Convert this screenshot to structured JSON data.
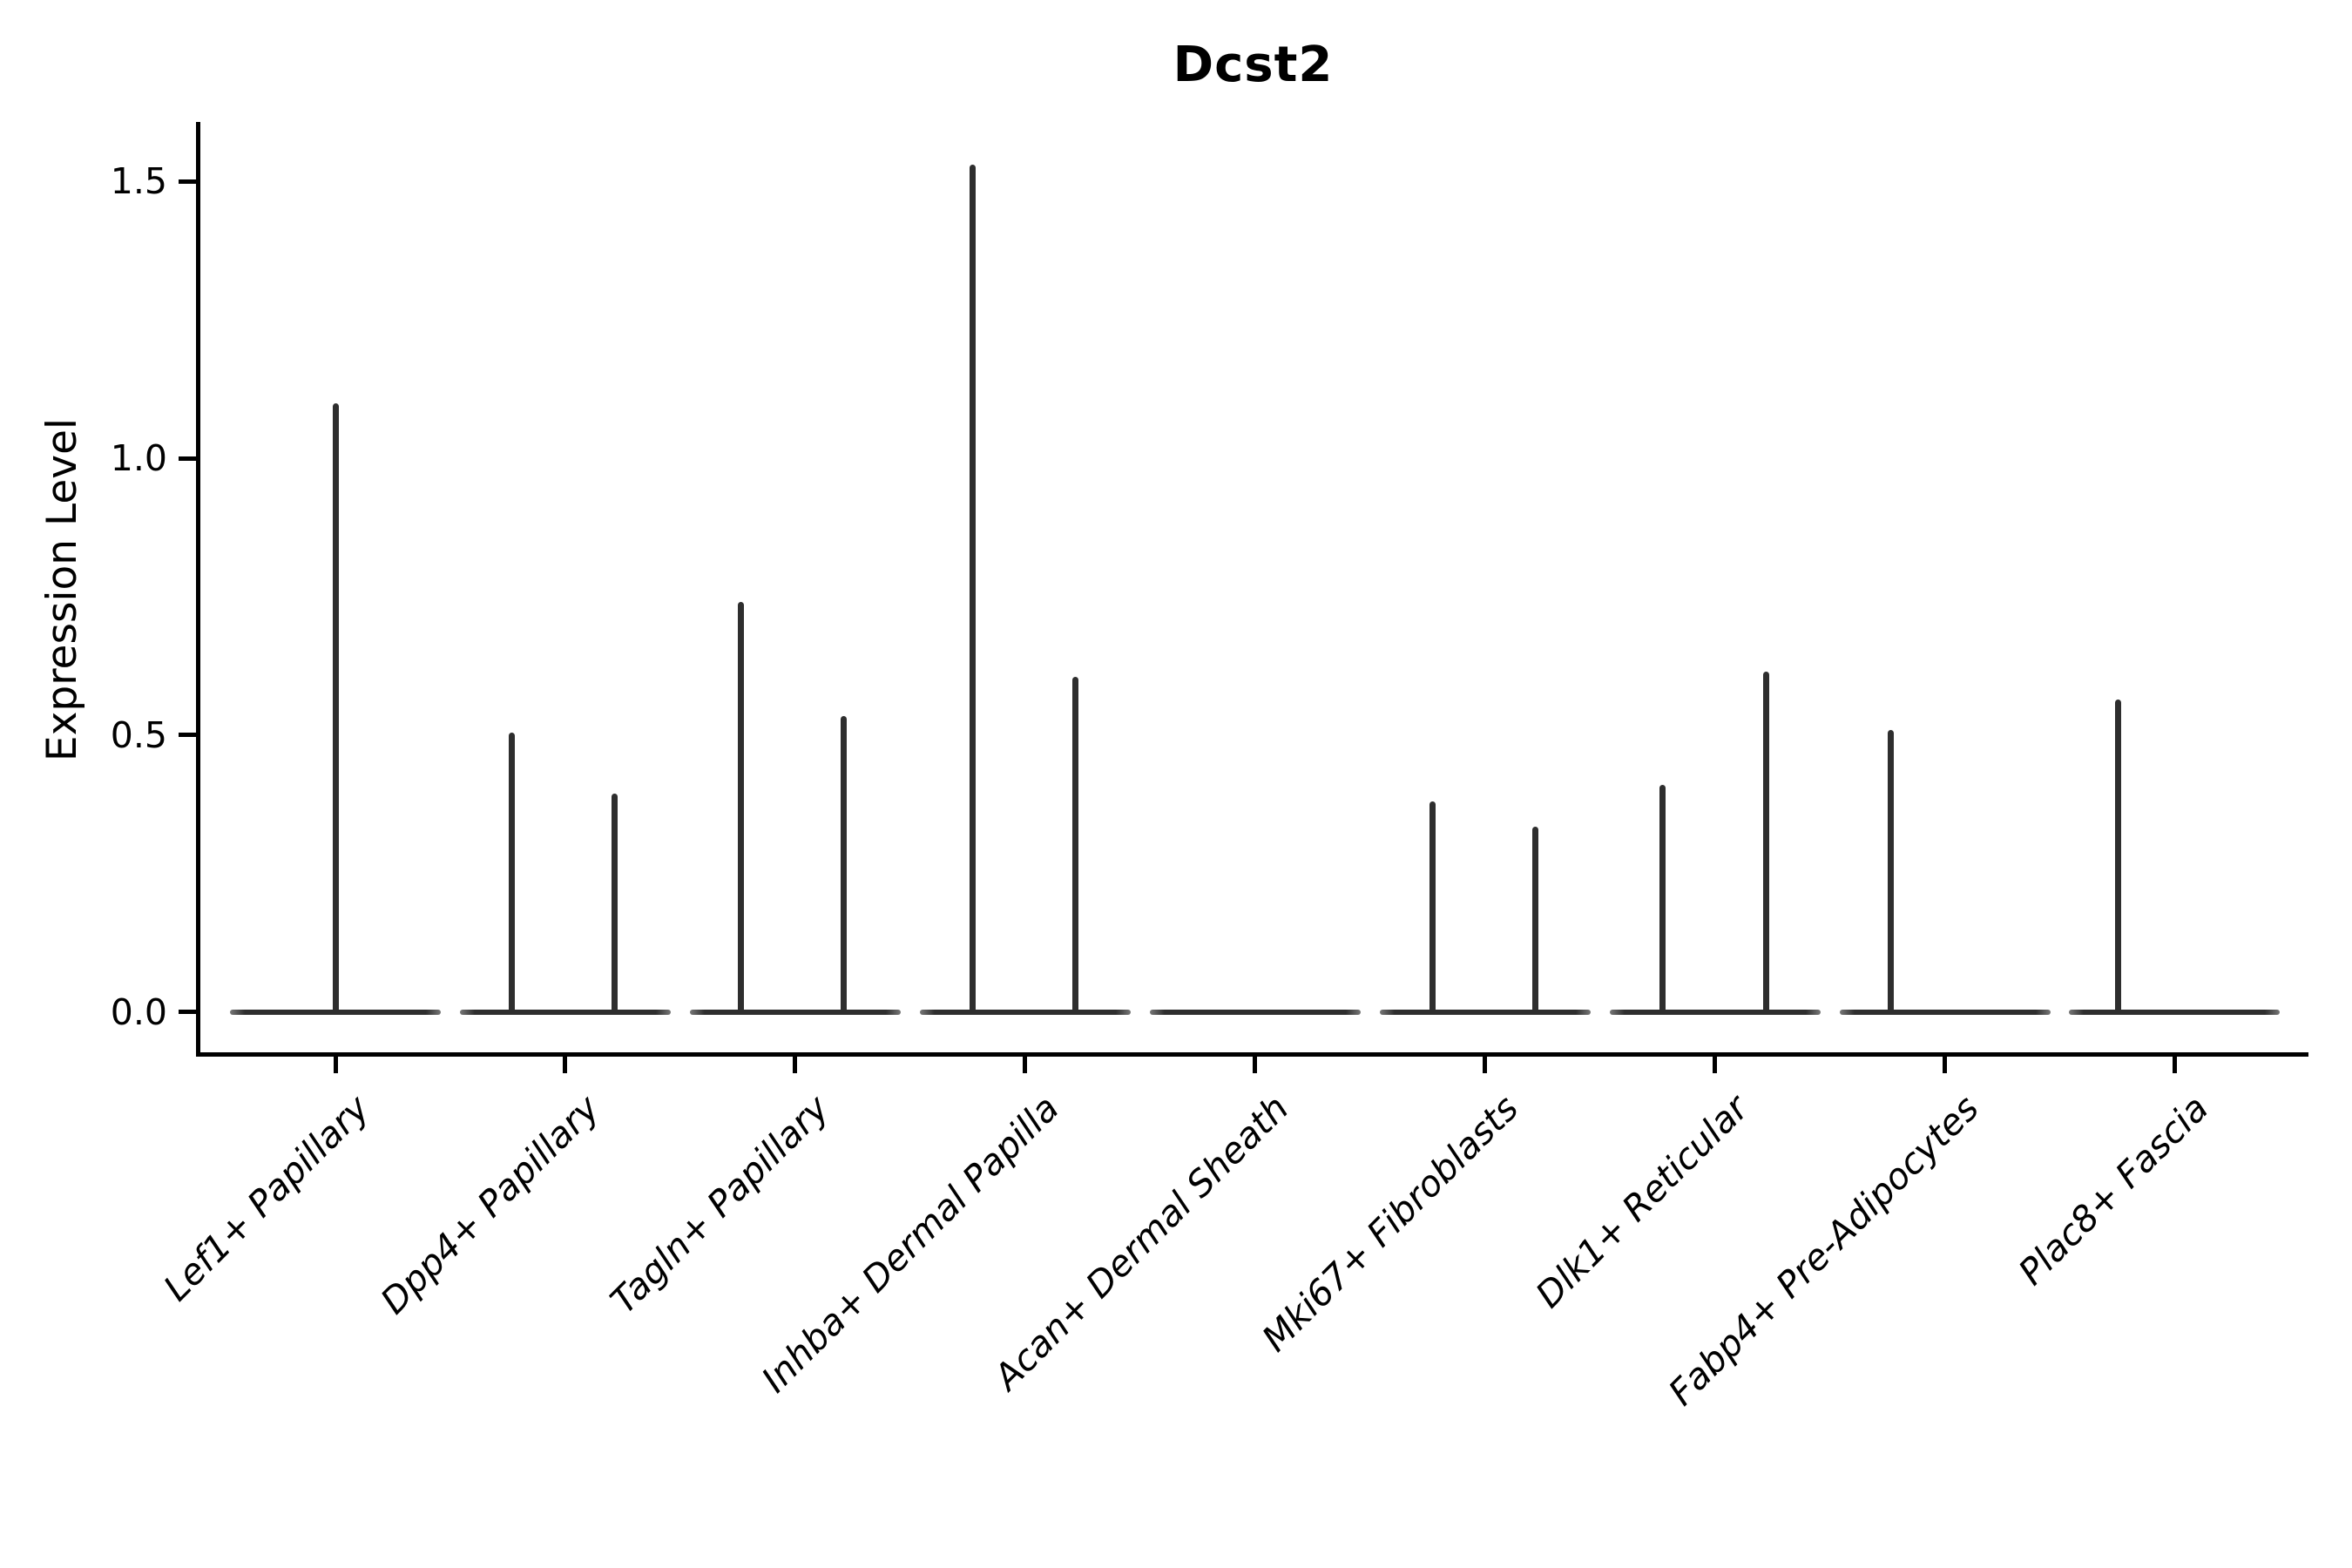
{
  "title": "Dcst2",
  "chart_data": {
    "type": "violin",
    "title": "Dcst2",
    "xlabel": "",
    "ylabel": "Expression Level",
    "y_axis": {
      "label": "Expression Level",
      "ticks": [
        0.0,
        0.5,
        1.0,
        1.5
      ],
      "tick_labels": [
        "0.0",
        "0.5",
        "1.0",
        "1.5"
      ],
      "lim": [
        -0.076,
        1.606
      ]
    },
    "categories": [
      "Lef1+ Papillary",
      "Dpp4+ Papillary",
      "Tagln+ Papillary",
      "Inhba+ Dermal Papilla",
      "Acan+ Dermal Sheath",
      "Mki67+ Fibroblasts",
      "Dlk1+ Reticular",
      "Fabp4+ Pre-Adipocytes",
      "Plac8+ Fascia"
    ],
    "series": [
      {
        "category": "Lef1+ Papillary",
        "spikes": [
          {
            "dx": 0,
            "value": 1.1
          }
        ]
      },
      {
        "category": "Dpp4+ Papillary",
        "spikes": [
          {
            "dx": -61,
            "value": 0.505
          },
          {
            "dx": 57,
            "value": 0.395
          }
        ]
      },
      {
        "category": "Tagln+ Papillary",
        "spikes": [
          {
            "dx": -62,
            "value": 0.74
          },
          {
            "dx": 56,
            "value": 0.535
          }
        ]
      },
      {
        "category": "Inhba+ Dermal Papilla",
        "spikes": [
          {
            "dx": -60,
            "value": 1.53
          },
          {
            "dx": 58,
            "value": 0.605
          }
        ]
      },
      {
        "category": "Acan+ Dermal Sheath",
        "spikes": []
      },
      {
        "category": "Mki67+ Fibroblasts",
        "spikes": [
          {
            "dx": -60,
            "value": 0.38
          },
          {
            "dx": 58,
            "value": 0.335
          }
        ]
      },
      {
        "category": "Dlk1+ Reticular",
        "spikes": [
          {
            "dx": -60,
            "value": 0.41
          },
          {
            "dx": 59,
            "value": 0.615
          }
        ]
      },
      {
        "category": "Fabp4+ Pre-Adipocytes",
        "spikes": [
          {
            "dx": -62,
            "value": 0.51
          }
        ]
      },
      {
        "category": "Plac8+ Fascia",
        "spikes": [
          {
            "dx": -65,
            "value": 0.565
          }
        ]
      }
    ],
    "layout_hints": {
      "grid": false,
      "legend": "none",
      "violin_body_at_zero": true,
      "x_label_rotation_deg": 45,
      "x_label_style": "italic"
    },
    "colors": {
      "violin_line": "#2e2e2e",
      "axis": "#000000",
      "text": "#000000",
      "background": "#ffffff"
    }
  }
}
